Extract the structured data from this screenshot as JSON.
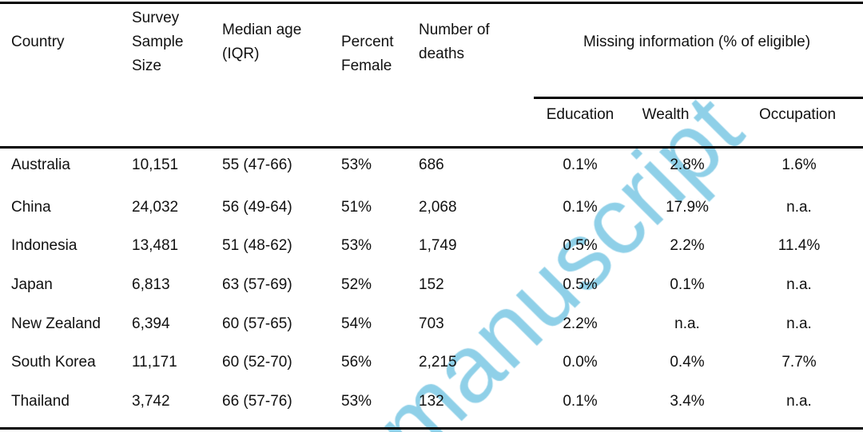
{
  "table": {
    "headers": {
      "country": [
        "Country"
      ],
      "sample": [
        "Survey",
        "Sample",
        "Size"
      ],
      "median_age": [
        "Median age",
        "(IQR)"
      ],
      "female": [
        "Percent",
        "Female"
      ],
      "deaths": [
        "Number of",
        "deaths"
      ],
      "missing_group": "Missing information (% of eligible)",
      "education": "Education",
      "wealth": "Wealth",
      "occupation": "Occupation"
    },
    "rows": [
      [
        "Australia",
        "10,151",
        "55 (47-66)",
        "53%",
        "686",
        "0.1%",
        "2.8%",
        "1.6%"
      ],
      [
        "China",
        "24,032",
        "56 (49-64)",
        "51%",
        "2,068",
        "0.1%",
        "17.9%",
        "n.a."
      ],
      [
        "Indonesia",
        "13,481",
        "51 (48-62)",
        "53%",
        "1,749",
        "0.5%",
        "2.2%",
        "11.4%"
      ],
      [
        "Japan",
        "6,813",
        "63 (57-69)",
        "52%",
        "152",
        "0.5%",
        "0.1%",
        "n.a."
      ],
      [
        "New Zealand",
        "6,394",
        "60 (57-65)",
        "54%",
        "703",
        "2.2%",
        "n.a.",
        "n.a."
      ],
      [
        "South Korea",
        "11,171",
        "60 (52-70)",
        "56%",
        "2,215",
        "0.0%",
        "0.4%",
        "7.7%"
      ],
      [
        "Thailand",
        "3,742",
        "66 (57-76)",
        "53%",
        "132",
        "0.1%",
        "3.4%",
        "n.a."
      ]
    ]
  },
  "watermark": {
    "text": "manuscript",
    "color": "#8fd0e8"
  }
}
